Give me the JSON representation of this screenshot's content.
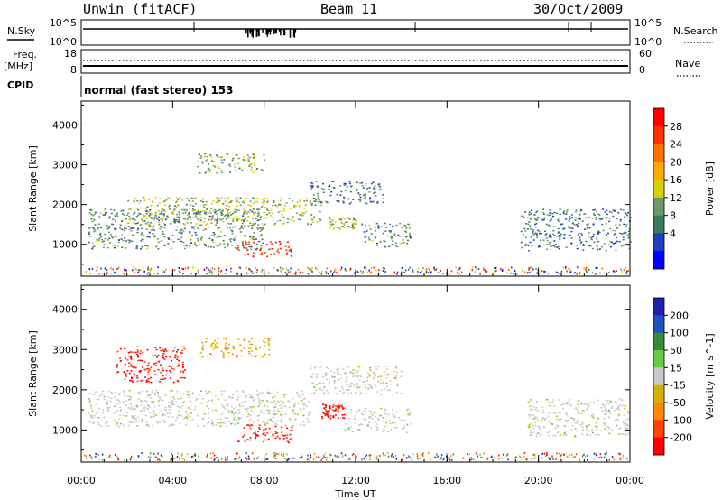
{
  "header": {
    "station": "Unwin (fitACF)",
    "beam": "Beam 11",
    "date": "30/Oct/2009"
  },
  "labels": {
    "nsky": "N.Sky",
    "nsearch": "N.Search",
    "freq": "Freq.",
    "freq_unit": "[MHz]",
    "nave": "Nave",
    "cpid": "CPID",
    "mode": "normal (fast stereo) 153",
    "ylabel": "Slant Range [km]",
    "xlabel": "Time UT",
    "nsky_top": "10^5",
    "nsky_bottom": "10^0",
    "freq_top": "18",
    "freq_bottom": "8",
    "nave_top": "60",
    "nave_bottom": "0"
  },
  "colors": {
    "power_scale": [
      "#0000ff",
      "#1f3fbf",
      "#3a7a5a",
      "#6a9a6a",
      "#d8d000",
      "#ffaa00",
      "#ff7000",
      "#ff3000",
      "#ff0000"
    ],
    "velocity_scale": [
      "#2020b0",
      "#2050c0",
      "#3a8a3a",
      "#66cc44",
      "#c8c8c8",
      "#d8b000",
      "#ff8800",
      "#ff4400",
      "#ff0000"
    ]
  },
  "chart_data": [
    {
      "type": "heatmap",
      "name": "power",
      "x_ticks": [
        "00:00",
        "04:00",
        "08:00",
        "12:00",
        "16:00",
        "20:00",
        "00:00"
      ],
      "y_ticks": [
        1000,
        2000,
        3000,
        4000
      ],
      "xlim": [
        0,
        24
      ],
      "ylim": [
        200,
        4600
      ],
      "ylabel": "Slant Range [km]",
      "colorbar_label": "Power [dB]",
      "colorbar_ticks": [
        4,
        8,
        12,
        16,
        20,
        24,
        28
      ],
      "colorbar_range": [
        0,
        32
      ],
      "features": [
        {
          "t0": 0.3,
          "t1": 8.0,
          "r0": 900,
          "r1": 1900,
          "value": 10
        },
        {
          "t0": 2.0,
          "t1": 10.5,
          "r0": 1500,
          "r1": 2200,
          "value": 14
        },
        {
          "t0": 6.8,
          "t1": 9.2,
          "r0": 700,
          "r1": 1100,
          "value": 28
        },
        {
          "t0": 5.0,
          "t1": 8.0,
          "r0": 2800,
          "r1": 3300,
          "value": 12
        },
        {
          "t0": 10.8,
          "t1": 12.0,
          "r0": 1400,
          "r1": 1700,
          "value": 14
        },
        {
          "t0": 12.2,
          "t1": 14.4,
          "r0": 950,
          "r1": 1550,
          "value": 10
        },
        {
          "t0": 10.0,
          "t1": 13.2,
          "r0": 2000,
          "r1": 2600,
          "value": 8
        },
        {
          "t0": 19.2,
          "t1": 24.0,
          "r0": 850,
          "r1": 1900,
          "value": 8
        }
      ]
    },
    {
      "type": "heatmap",
      "name": "velocity",
      "x_ticks": [
        "00:00",
        "04:00",
        "08:00",
        "12:00",
        "16:00",
        "20:00",
        "00:00"
      ],
      "y_ticks": [
        1000,
        2000,
        3000,
        4000
      ],
      "xlim": [
        0,
        24
      ],
      "ylim": [
        200,
        4600
      ],
      "ylabel": "Slant Range [km]",
      "xlabel": "Time UT",
      "colorbar_label": "Velocity [m s^-1]",
      "colorbar_ticks": [
        200,
        100,
        50,
        15,
        -15,
        -50,
        -100,
        -200
      ],
      "features": [
        {
          "t0": 0.3,
          "t1": 10.0,
          "r0": 1100,
          "r1": 2000,
          "value": 0
        },
        {
          "t0": 1.5,
          "t1": 4.5,
          "r0": 2200,
          "r1": 3100,
          "value": -200
        },
        {
          "t0": 6.8,
          "t1": 9.2,
          "r0": 700,
          "r1": 1150,
          "value": -200
        },
        {
          "t0": 5.2,
          "t1": 8.2,
          "r0": 2800,
          "r1": 3300,
          "value": -50
        },
        {
          "t0": 10.5,
          "t1": 11.5,
          "r0": 1300,
          "r1": 1650,
          "value": -200
        },
        {
          "t0": 11.5,
          "t1": 14.4,
          "r0": 950,
          "r1": 1550,
          "value": 0
        },
        {
          "t0": 10.0,
          "t1": 14.0,
          "r0": 1900,
          "r1": 2600,
          "value": 0
        },
        {
          "t0": 19.5,
          "t1": 24.0,
          "r0": 850,
          "r1": 1800,
          "value": 0
        }
      ]
    }
  ]
}
